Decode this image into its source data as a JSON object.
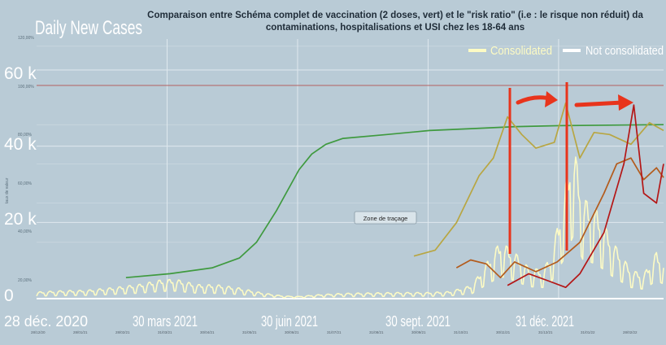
{
  "overlay": {
    "title_line1": "Comparaison entre Schéma complet de vaccination (2 doses, vert) et le \"risk ratio\" (i.e : le risque non réduit) da",
    "title_line2": "contaminations, hospitalisations et USI chez les 18-64 ans",
    "plot_area_label": "Zone de traçage",
    "y_axis_label": "taux de valeur",
    "pct_ticks": [
      "120,00%",
      "100,00%",
      "80,00%",
      "60,00%",
      "40,00%",
      "20,00%"
    ],
    "bottom_date_ticks": [
      "28/12/20",
      "28/01/21",
      "28/02/21",
      "31/03/21",
      "30/04/21",
      "31/05/21",
      "30/06/21",
      "31/07/21",
      "31/08/21",
      "30/09/21",
      "31/10/21",
      "30/11/21",
      "31/12/21",
      "31/01/22",
      "28/02/22"
    ]
  },
  "background_chart": {
    "title": "Daily New Cases",
    "legend": {
      "consolidated": "Consolidated",
      "not_consolidated": "Not consolidated"
    },
    "y_ticks": [
      "60 k",
      "40 k",
      "20 k",
      "0"
    ],
    "x_ticks": [
      "28 déc. 2020",
      "30 mars 2021",
      "30 juin 2021",
      "30 sept. 2021",
      "31 déc. 2021"
    ]
  },
  "colors": {
    "background": "#b9cbd6",
    "vaccination": "#3f9a3f",
    "cases": "#fdfbc4",
    "risk_contaminations": "#b8a642",
    "risk_hospitalisations": "#b35b1c",
    "risk_icu": "#b41616",
    "annotation": "#e8341c",
    "reference_100": "#b46060"
  },
  "chart_data": [
    {
      "type": "line",
      "title": "Daily New Cases",
      "x_domain": [
        "2020-12-28",
        "2022-03-15"
      ],
      "x_ticks": [
        "28 déc. 2020",
        "30 mars 2021",
        "30 juin 2021",
        "30 sept. 2021",
        "31 déc. 2021"
      ],
      "ylim": [
        0,
        60000
      ],
      "series": [
        {
          "name": "Consolidated",
          "points": [
            [
              "2020-12-28",
              1500
            ],
            [
              "2021-01-15",
              1800
            ],
            [
              "2021-02-01",
              1900
            ],
            [
              "2021-02-20",
              2500
            ],
            [
              "2021-03-10",
              3200
            ],
            [
              "2021-03-25",
              4200
            ],
            [
              "2021-04-05",
              4400
            ],
            [
              "2021-04-20",
              3200
            ],
            [
              "2021-05-05",
              3100
            ],
            [
              "2021-05-20",
              2400
            ],
            [
              "2021-06-05",
              1300
            ],
            [
              "2021-06-20",
              600
            ],
            [
              "2021-07-01",
              500
            ],
            [
              "2021-07-15",
              900
            ],
            [
              "2021-08-01",
              1200
            ],
            [
              "2021-08-20",
              1300
            ],
            [
              "2021-09-10",
              1400
            ],
            [
              "2021-09-30",
              1400
            ],
            [
              "2021-10-15",
              1600
            ],
            [
              "2021-10-31",
              3000
            ],
            [
              "2021-11-10",
              8000
            ],
            [
              "2021-11-20",
              13000
            ],
            [
              "2021-11-30",
              10500
            ],
            [
              "2021-12-10",
              7000
            ],
            [
              "2021-12-20",
              6500
            ],
            [
              "2021-12-26",
              10000
            ],
            [
              "2022-01-03",
              22000
            ],
            [
              "2022-01-10",
              36000
            ],
            [
              "2022-01-17",
              23000
            ],
            [
              "2022-01-27",
              20000
            ],
            [
              "2022-02-07",
              13000
            ],
            [
              "2022-02-20",
              6500
            ],
            [
              "2022-03-01",
              5500
            ],
            [
              "2022-03-10",
              10500
            ],
            [
              "2022-03-15",
              8500
            ]
          ]
        }
      ]
    },
    {
      "type": "line",
      "title": "Comparaison entre Schéma complet de vaccination (2 doses, vert) et le \"risk ratio\" (i.e : le risque non réduit) da contaminations, hospitalisations et USI chez les 18-64 ans",
      "ylabel": "taux de valeur",
      "ylim": [
        0,
        120
      ],
      "x_domain": [
        "2020-12-28",
        "2022-03-15"
      ],
      "series": [
        {
          "key": "vaccination",
          "points": [
            [
              "2021-03-01",
              2
            ],
            [
              "2021-04-01",
              4
            ],
            [
              "2021-05-01",
              7
            ],
            [
              "2021-05-20",
              12
            ],
            [
              "2021-06-01",
              20
            ],
            [
              "2021-06-15",
              36
            ],
            [
              "2021-07-01",
              57
            ],
            [
              "2021-07-10",
              65
            ],
            [
              "2021-07-20",
              70
            ],
            [
              "2021-08-01",
              73
            ],
            [
              "2021-09-01",
              75
            ],
            [
              "2021-10-01",
              77
            ],
            [
              "2021-11-01",
              78
            ],
            [
              "2021-12-01",
              79
            ],
            [
              "2022-01-01",
              79.5
            ],
            [
              "2022-03-15",
              80
            ]
          ]
        },
        {
          "key": "risk_contaminations",
          "points": [
            [
              "2021-09-20",
              13
            ],
            [
              "2021-10-05",
              16
            ],
            [
              "2021-10-20",
              30
            ],
            [
              "2021-11-05",
              54
            ],
            [
              "2021-11-15",
              63
            ],
            [
              "2021-11-25",
              84
            ],
            [
              "2021-12-05",
              75
            ],
            [
              "2021-12-15",
              68
            ],
            [
              "2021-12-28",
              71
            ],
            [
              "2022-01-05",
              91
            ],
            [
              "2022-01-15",
              63
            ],
            [
              "2022-01-25",
              76
            ],
            [
              "2022-02-05",
              75
            ],
            [
              "2022-02-20",
              70
            ],
            [
              "2022-03-05",
              81
            ],
            [
              "2022-03-15",
              77
            ]
          ]
        },
        {
          "key": "risk_hospitalisations",
          "points": [
            [
              "2021-10-20",
              7
            ],
            [
              "2021-10-30",
              11
            ],
            [
              "2021-11-10",
              9
            ],
            [
              "2021-11-20",
              2
            ],
            [
              "2021-11-30",
              10
            ],
            [
              "2021-12-15",
              5
            ],
            [
              "2021-12-30",
              10
            ],
            [
              "2022-01-15",
              20
            ],
            [
              "2022-02-01",
              45
            ],
            [
              "2022-02-10",
              60
            ],
            [
              "2022-02-20",
              63
            ],
            [
              "2022-03-01",
              52
            ],
            [
              "2022-03-10",
              58
            ],
            [
              "2022-03-15",
              53
            ]
          ]
        },
        {
          "key": "risk_icu",
          "points": [
            [
              "2021-11-25",
              -2
            ],
            [
              "2021-12-10",
              4
            ],
            [
              "2021-12-25",
              0
            ],
            [
              "2022-01-05",
              -3
            ],
            [
              "2022-01-15",
              4
            ],
            [
              "2022-02-01",
              25
            ],
            [
              "2022-02-15",
              60
            ],
            [
              "2022-02-22",
              90
            ],
            [
              "2022-03-01",
              45
            ],
            [
              "2022-03-10",
              40
            ],
            [
              "2022-03-15",
              60
            ]
          ]
        }
      ]
    }
  ]
}
